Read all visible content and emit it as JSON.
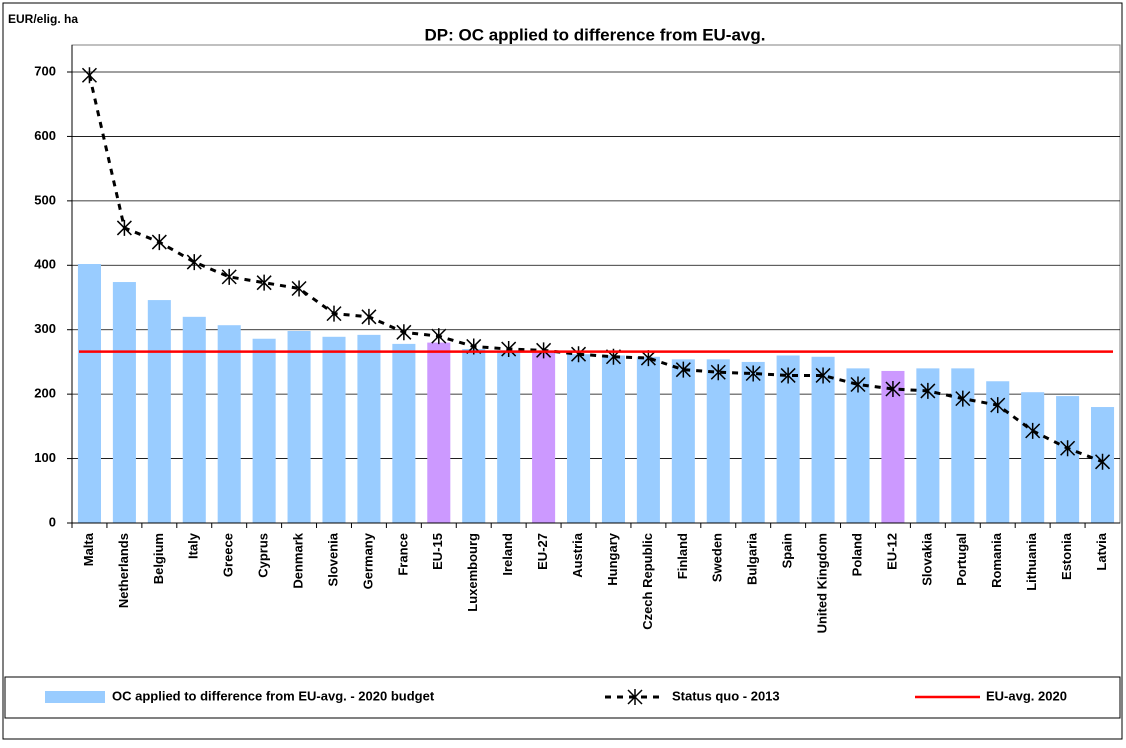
{
  "chart_data": {
    "type": "bar",
    "title": "DP: OC applied to difference from EU-avg.",
    "y_label": "EUR/elig. ha",
    "categories": [
      "Malta",
      "Netherlands",
      "Belgium",
      "Italy",
      "Greece",
      "Cyprus",
      "Denmark",
      "Slovenia",
      "Germany",
      "France",
      "EU-15",
      "Luxembourg",
      "Ireland",
      "EU-27",
      "Austria",
      "Hungary",
      "Czech Republic",
      "Finland",
      "Sweden",
      "Bulgaria",
      "Spain",
      "United Kingdom",
      "Poland",
      "EU-12",
      "Slovakia",
      "Portugal",
      "Romania",
      "Lithuania",
      "Estonia",
      "Latvia"
    ],
    "series": [
      {
        "name": "OC applied to difference from EU-avg. - 2020 budget",
        "type": "bar",
        "color": "#99ccff",
        "highlight_color": "#cc99ff",
        "highlight": [
          "EU-15",
          "EU-27",
          "EU-12"
        ],
        "values": [
          402,
          374,
          346,
          320,
          307,
          286,
          298,
          289,
          292,
          278,
          280,
          270,
          268,
          266,
          262,
          260,
          258,
          254,
          254,
          250,
          260,
          258,
          240,
          236,
          240,
          240,
          220,
          203,
          197,
          180
        ]
      },
      {
        "name": "Status quo - 2013",
        "type": "line",
        "color": "#000000",
        "values": [
          695,
          458,
          436,
          405,
          382,
          373,
          364,
          325,
          320,
          296,
          290,
          274,
          270,
          268,
          262,
          258,
          256,
          238,
          234,
          232,
          229,
          229,
          215,
          208,
          205,
          193,
          183,
          143,
          116,
          95
        ]
      }
    ],
    "reference_line": {
      "name": "EU-avg. 2020",
      "color": "#ff0000",
      "value": 266
    },
    "ylim": [
      0,
      700
    ],
    "yticks": [
      0,
      100,
      200,
      300,
      400,
      500,
      600,
      700
    ],
    "grid": true
  }
}
